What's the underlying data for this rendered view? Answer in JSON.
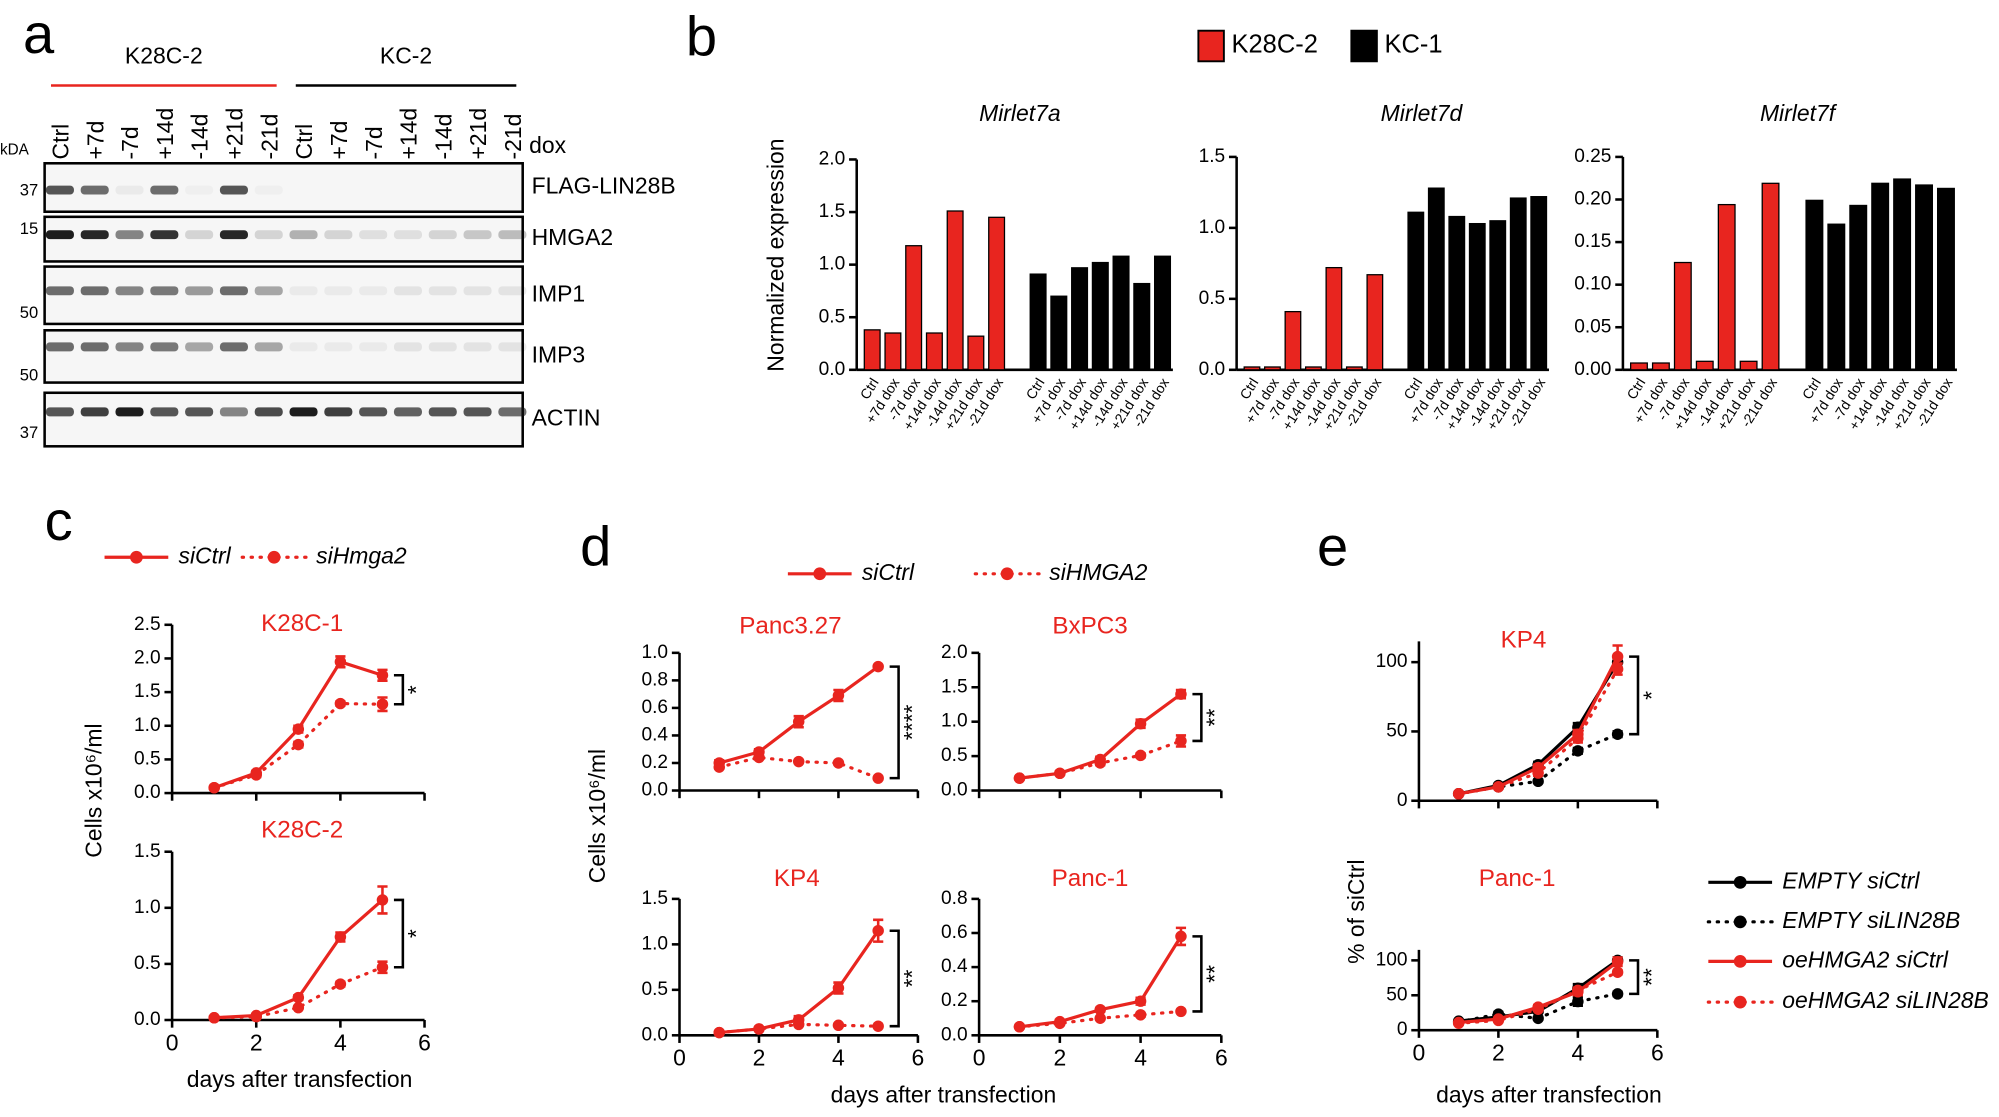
{
  "panel_labels": [
    "a",
    "b",
    "c",
    "d",
    "e"
  ],
  "blot": {
    "unit": "kDA",
    "treatment": "dox",
    "groups": [
      {
        "name": "K28C-2",
        "color": "#e8251f"
      },
      {
        "name": "KC-2",
        "color": "#000000"
      }
    ],
    "lanes": [
      "Ctrl",
      "+7d",
      "-7d",
      "+14d",
      "-14d",
      "+21d",
      "-21d",
      "Ctrl",
      "+7d",
      "-7d",
      "+14d",
      "-14d",
      "+21d",
      "-21d"
    ],
    "rows": [
      {
        "protein": "FLAG-LIN28B",
        "marker": "37",
        "intensity": [
          0.7,
          0.6,
          0.05,
          0.6,
          0.03,
          0.7,
          0.03,
          0,
          0,
          0,
          0,
          0,
          0,
          0
        ]
      },
      {
        "protein": "HMGA2",
        "marker": "15",
        "intensity": [
          0.95,
          0.9,
          0.5,
          0.85,
          0.15,
          0.9,
          0.15,
          0.3,
          0.15,
          0.1,
          0.1,
          0.15,
          0.2,
          0.25
        ]
      },
      {
        "protein": "IMP1",
        "marker": "50",
        "intensity": [
          0.6,
          0.6,
          0.5,
          0.55,
          0.4,
          0.6,
          0.35,
          0.05,
          0.05,
          0.05,
          0.08,
          0.08,
          0.08,
          0.08
        ]
      },
      {
        "protein": "IMP3",
        "marker": "50",
        "intensity": [
          0.6,
          0.6,
          0.5,
          0.55,
          0.35,
          0.6,
          0.35,
          0.05,
          0.05,
          0.05,
          0.08,
          0.08,
          0.08,
          0.08
        ]
      },
      {
        "protein": "ACTIN",
        "marker": "37",
        "intensity": [
          0.7,
          0.8,
          0.95,
          0.7,
          0.7,
          0.5,
          0.75,
          0.95,
          0.8,
          0.7,
          0.65,
          0.7,
          0.7,
          0.6
        ]
      }
    ]
  },
  "chart_data": [
    {
      "type": "bar",
      "ylabel": "Normalized expression",
      "categories": [
        "Ctrl",
        "+7d dox",
        "-7d dox",
        "+14d dox",
        "-14d dox",
        "+21d dox",
        "-21d dox"
      ],
      "series": [
        {
          "name": "K28C-2",
          "color": "#e8251f"
        },
        {
          "name": "KC-1",
          "color": "#000000"
        }
      ],
      "panels": [
        {
          "title": "Mirlet7a",
          "ylim": [
            0,
            2
          ],
          "yticks": [
            {
              "value": 0,
              "label": "0.0"
            },
            0.5,
            {
              "value": 1,
              "label": "1.0"
            },
            1.5,
            {
              "value": 2,
              "label": "2.0"
            }
          ],
          "values": [
            [
              0.38,
              0.35,
              1.18,
              0.35,
              1.51,
              0.32,
              1.45
            ],
            [
              0.91,
              0.7,
              0.97,
              1.02,
              1.08,
              0.82,
              1.08
            ]
          ]
        },
        {
          "title": "Mirlet7d",
          "ylim": [
            0,
            1.5
          ],
          "yticks": [
            {
              "value": 0,
              "label": "0.0"
            },
            0.5,
            {
              "value": 1,
              "label": "1.0"
            },
            1.5
          ],
          "values": [
            [
              0.02,
              0.02,
              0.41,
              0.02,
              0.72,
              0.02,
              0.67
            ],
            [
              1.11,
              1.28,
              1.08,
              1.03,
              1.05,
              1.21,
              1.22
            ]
          ]
        },
        {
          "title": "Mirlet7f",
          "ylim": [
            0,
            0.25
          ],
          "yticks": [
            {
              "value": 0,
              "label": "0.00"
            },
            0.05,
            {
              "value": 0.1,
              "label": "0.10"
            },
            0.15,
            {
              "value": 0.2,
              "label": "0.20"
            },
            0.25
          ],
          "values": [
            [
              0.008,
              0.008,
              0.126,
              0.01,
              0.194,
              0.01,
              0.219
            ],
            [
              0.199,
              0.171,
              0.193,
              0.219,
              0.224,
              0.217,
              0.213
            ]
          ]
        }
      ]
    },
    {
      "type": "line",
      "ylabel": "Cells x10⁶/ml",
      "xlabel": "days after transfection",
      "x": [
        1,
        2,
        3,
        4,
        5
      ],
      "xlim": [
        0,
        6
      ],
      "xticks": [
        0,
        2,
        4,
        6
      ],
      "series": [
        {
          "name": "siCtrl",
          "color": "#e8251f",
          "dotted": false
        },
        {
          "name": "siHmga2",
          "color": "#e8251f",
          "dotted": true
        }
      ],
      "panels": [
        {
          "title": "K28C-1",
          "ylim": [
            0,
            2.5
          ],
          "yticks": [
            {
              "value": 0,
              "label": "0.0"
            },
            0.5,
            {
              "value": 1,
              "label": "1.0"
            },
            1.5,
            {
              "value": 2,
              "label": "2.0"
            },
            2.5
          ],
          "values": [
            [
              0.08,
              0.3,
              0.95,
              1.95,
              1.75
            ],
            [
              0.08,
              0.27,
              0.72,
              1.33,
              1.32
            ]
          ],
          "errors": [
            [
              0.02,
              0.03,
              0.05,
              0.08,
              0.08
            ],
            [
              0.02,
              0.03,
              0.04,
              0.03,
              0.1
            ]
          ],
          "significance": "*"
        },
        {
          "title": "K28C-2",
          "ylim": [
            0,
            1.5
          ],
          "yticks": [
            {
              "value": 0,
              "label": "0.0"
            },
            0.5,
            {
              "value": 1,
              "label": "1.0"
            },
            1.5
          ],
          "values": [
            [
              0.02,
              0.04,
              0.2,
              0.74,
              1.07
            ],
            [
              0.02,
              0.03,
              0.11,
              0.32,
              0.47
            ]
          ],
          "errors": [
            [
              0.01,
              0.01,
              0.02,
              0.04,
              0.12
            ],
            [
              0.01,
              0.01,
              0.01,
              0.02,
              0.05
            ]
          ],
          "significance": "*"
        }
      ]
    },
    {
      "type": "line",
      "ylabel": "Cells x10⁶/ml",
      "xlabel": "days after transfection",
      "x": [
        1,
        2,
        3,
        4,
        5
      ],
      "xlim": [
        0,
        6
      ],
      "xticks": [
        0,
        2,
        4,
        6
      ],
      "series": [
        {
          "name": "siCtrl",
          "color": "#e8251f",
          "dotted": false
        },
        {
          "name": "siHMGA2",
          "color": "#e8251f",
          "dotted": true
        }
      ],
      "panels": [
        {
          "title": "Panc3.27",
          "ylim": [
            0,
            1
          ],
          "yticks": [
            {
              "value": 0,
              "label": "0.0"
            },
            0.2,
            0.4,
            0.6,
            0.8,
            {
              "value": 1,
              "label": "1.0"
            }
          ],
          "values": [
            [
              0.2,
              0.28,
              0.5,
              0.69,
              0.9
            ],
            [
              0.17,
              0.24,
              0.21,
              0.2,
              0.09
            ]
          ],
          "errors": [
            [
              0.02,
              0.02,
              0.04,
              0.04,
              0.01
            ],
            [
              0.01,
              0.01,
              0.01,
              0.01,
              0.01
            ]
          ],
          "significance": "****"
        },
        {
          "title": "BxPC3",
          "ylim": [
            0,
            2
          ],
          "yticks": [
            {
              "value": 0,
              "label": "0.0"
            },
            0.5,
            {
              "value": 1,
              "label": "1.0"
            },
            1.5,
            {
              "value": 2,
              "label": "2.0"
            }
          ],
          "values": [
            [
              0.18,
              0.25,
              0.45,
              0.97,
              1.4
            ],
            [
              0.18,
              0.25,
              0.4,
              0.51,
              0.72
            ]
          ],
          "errors": [
            [
              0.02,
              0.02,
              0.04,
              0.06,
              0.06
            ],
            [
              0.02,
              0.02,
              0.03,
              0.03,
              0.08
            ]
          ],
          "significance": "**"
        },
        {
          "title": "KP4",
          "ylim": [
            0,
            1.5
          ],
          "yticks": [
            {
              "value": 0,
              "label": "0.0"
            },
            0.5,
            {
              "value": 1,
              "label": "1.0"
            },
            1.5
          ],
          "values": [
            [
              0.03,
              0.07,
              0.17,
              0.52,
              1.15
            ],
            [
              0.03,
              0.07,
              0.12,
              0.11,
              0.1
            ]
          ],
          "errors": [
            [
              0.01,
              0.01,
              0.04,
              0.06,
              0.12
            ],
            [
              0.01,
              0.01,
              0.01,
              0.01,
              0.01
            ]
          ],
          "significance": "**"
        },
        {
          "title": "Panc-1",
          "ylim": [
            0,
            0.8
          ],
          "yticks": [
            {
              "value": 0,
              "label": "0.0"
            },
            0.2,
            0.4,
            0.6,
            0.8
          ],
          "values": [
            [
              0.05,
              0.08,
              0.15,
              0.2,
              0.58
            ],
            [
              0.05,
              0.07,
              0.1,
              0.12,
              0.14
            ]
          ],
          "errors": [
            [
              0.005,
              0.01,
              0.01,
              0.02,
              0.05
            ],
            [
              0.005,
              0.005,
              0.005,
              0.01,
              0.005
            ]
          ],
          "significance": "**"
        }
      ]
    },
    {
      "type": "line",
      "ylabel": "% of siCtrl",
      "xlabel": "days after transfection",
      "x": [
        1,
        2,
        3,
        4,
        5
      ],
      "xlim": [
        0,
        6
      ],
      "xticks": [
        0,
        2,
        4,
        6
      ],
      "series": [
        {
          "name": "EMPTY siCtrl",
          "color": "#000000",
          "dotted": false
        },
        {
          "name": "EMPTY siLIN28B",
          "color": "#000000",
          "dotted": true
        },
        {
          "name": "oeHMGA2 siCtrl",
          "color": "#e8251f",
          "dotted": false
        },
        {
          "name": "oeHMGA2 siLIN28B",
          "color": "#e8251f",
          "dotted": true
        }
      ],
      "panels": [
        {
          "title": "KP4",
          "ylim": [
            0,
            115
          ],
          "yticks": [
            0,
            50,
            100
          ],
          "values": [
            [
              5,
              11,
              26,
              53,
              100
            ],
            [
              5,
              10,
              14,
              36,
              48
            ],
            [
              5,
              10,
              24,
              48,
              104
            ],
            [
              5,
              10,
              20,
              45,
              95
            ]
          ],
          "errors": [
            [
              1,
              1,
              2,
              3,
              4
            ],
            [
              1,
              1,
              1,
              2,
              2
            ],
            [
              1,
              1,
              2,
              3,
              8
            ],
            [
              1,
              1,
              2,
              3,
              4
            ]
          ],
          "significance": "*"
        },
        {
          "title": "Panc-1",
          "ylim": [
            0,
            115
          ],
          "yticks": [
            0,
            50,
            100
          ],
          "values": [
            [
              13,
              19,
              27,
              60,
              100
            ],
            [
              12,
              23,
              17,
              41,
              52
            ],
            [
              11,
              16,
              33,
              55,
              98
            ],
            [
              10,
              14,
              30,
              57,
              83
            ]
          ],
          "errors": [
            [
              2,
              2,
              2,
              6,
              4
            ],
            [
              2,
              3,
              2,
              6,
              3
            ],
            [
              2,
              2,
              3,
              5,
              6
            ],
            [
              2,
              2,
              2,
              4,
              3
            ]
          ],
          "significance": "**"
        }
      ]
    }
  ]
}
